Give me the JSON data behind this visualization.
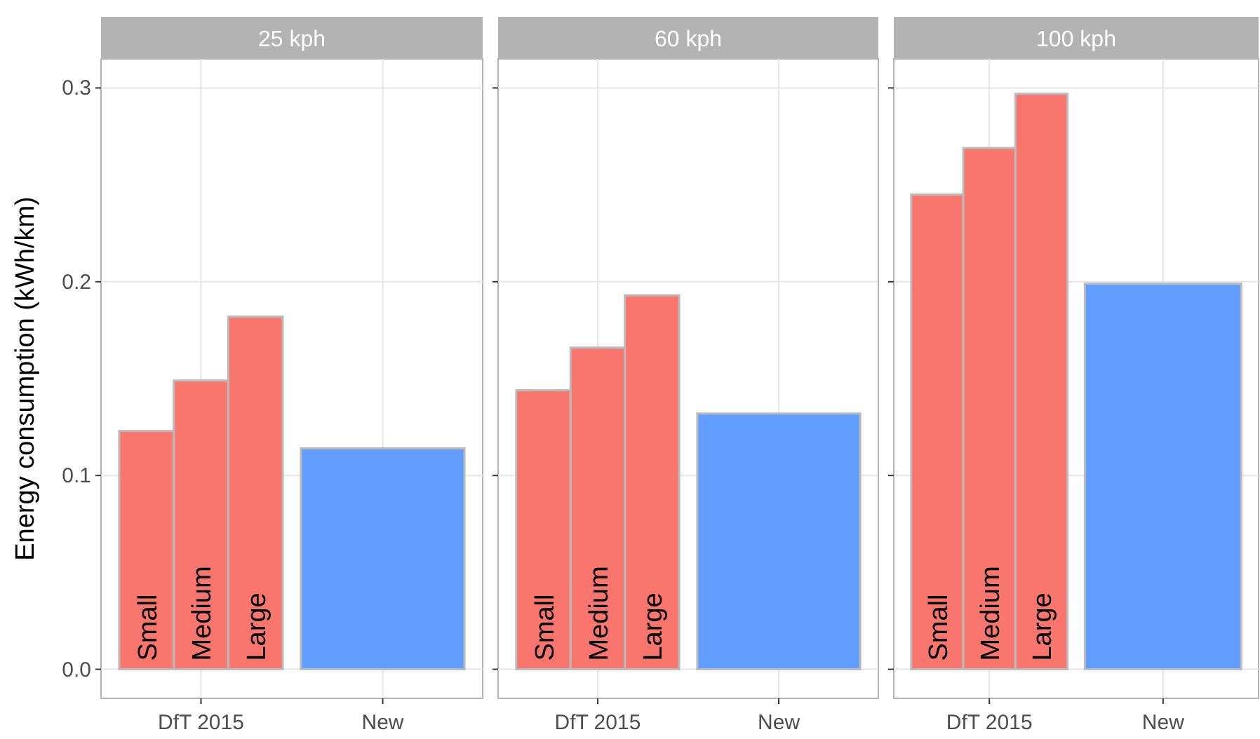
{
  "chart_data": [
    {
      "type": "bar",
      "title": "25 kph",
      "ylabel": "Energy consumption (kWh/km)",
      "categories": [
        "DfT 2015",
        "New"
      ],
      "ylim": [
        -0.015,
        0.315
      ],
      "yticks": [
        {
          "value": 0,
          "label": "0.0"
        },
        {
          "value": 0.1,
          "label": "0.1"
        },
        {
          "value": 0.2,
          "label": "0.2"
        },
        {
          "value": 0.3,
          "label": "0.3"
        }
      ],
      "grid": true,
      "series": [
        {
          "name": "Small",
          "color": "#f8766d",
          "values": [
            0.123,
            null
          ]
        },
        {
          "name": "Medium",
          "color": "#f8766d",
          "values": [
            0.149,
            null
          ]
        },
        {
          "name": "Large",
          "color": "#f8766d",
          "values": [
            0.182,
            null
          ]
        },
        {
          "color": "#619cff",
          "values": [
            null,
            0.114
          ]
        }
      ]
    },
    {
      "type": "bar",
      "title": "60 kph",
      "categories": [
        "DfT 2015",
        "New"
      ],
      "ylim": [
        -0.015,
        0.315
      ],
      "yticks": [
        0,
        0.1,
        0.2,
        0.3
      ],
      "grid": true,
      "tick_labels": "x",
      "series": [
        {
          "name": "Small",
          "color": "#f8766d",
          "values": [
            0.144,
            null
          ]
        },
        {
          "name": "Medium",
          "color": "#f8766d",
          "values": [
            0.166,
            null
          ]
        },
        {
          "name": "Large",
          "color": "#f8766d",
          "values": [
            0.193,
            null
          ]
        },
        {
          "color": "#619cff",
          "values": [
            null,
            0.132
          ]
        }
      ]
    },
    {
      "type": "bar",
      "title": "100 kph",
      "categories": [
        "DfT 2015",
        "New"
      ],
      "ylim": [
        -0.015,
        0.315
      ],
      "yticks": [
        0,
        0.1,
        0.2,
        0.3
      ],
      "grid": true,
      "tick_labels": "x",
      "series": [
        {
          "name": "Small",
          "color": "#f8766d",
          "values": [
            0.245,
            null
          ]
        },
        {
          "name": "Medium",
          "color": "#f8766d",
          "values": [
            0.269,
            null
          ]
        },
        {
          "name": "Large",
          "color": "#f8766d",
          "values": [
            0.297,
            null
          ]
        },
        {
          "color": "#619cff",
          "values": [
            null,
            0.199
          ]
        }
      ]
    }
  ]
}
